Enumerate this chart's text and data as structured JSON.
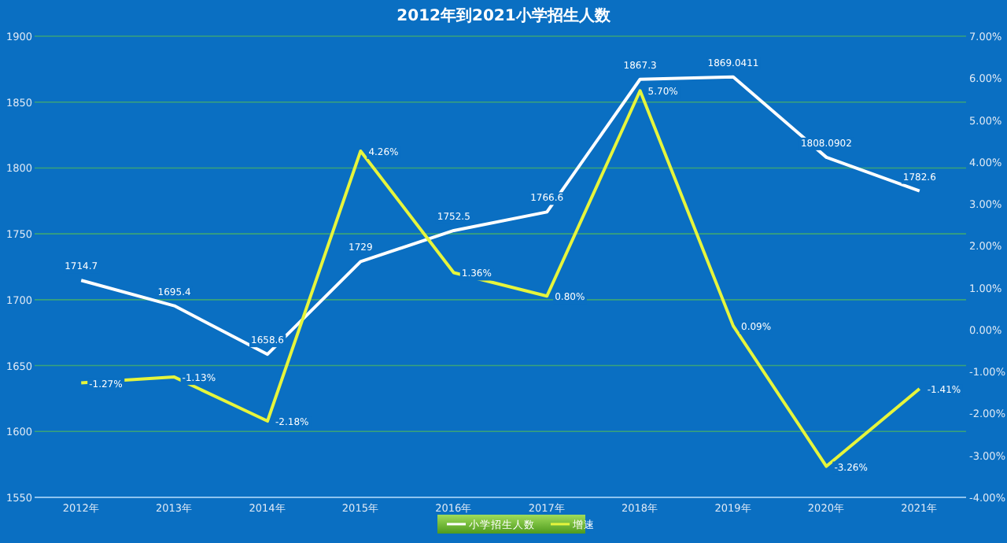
{
  "chart_data": {
    "type": "line",
    "title": "2012年到2021小学招生人数",
    "categories": [
      "2012年",
      "2013年",
      "2014年",
      "2015年",
      "2016年",
      "2017年",
      "2018年",
      "2019年",
      "2020年",
      "2021年"
    ],
    "series": [
      {
        "name": "小学招生人数",
        "color": "#ffffff",
        "values": [
          1714.7,
          1695.4,
          1658.6,
          1729,
          1752.5,
          1766.6,
          1867.3,
          1869.0411,
          1808.0902,
          1782.6
        ],
        "value_labels": [
          "1714.7",
          "1695.4",
          "1658.6",
          "1729",
          "1752.5",
          "1766.6",
          "1867.3",
          "1869.0411",
          "1808.0902",
          "1782.6"
        ]
      },
      {
        "name": "增速",
        "color": "#e6f53c",
        "axis": "y2",
        "values": [
          -1.27,
          -1.13,
          -2.18,
          4.26,
          1.36,
          0.8,
          5.7,
          0.09,
          -3.26,
          -1.41
        ],
        "value_labels": [
          "-1.27%",
          "-1.13%",
          "-2.18%",
          "4.26%",
          "1.36%",
          "0.80%",
          "5.70%",
          "0.09%",
          "-3.26%",
          "-1.41%"
        ]
      }
    ],
    "ylim": [
      1550,
      1900
    ],
    "yticks": [
      1550,
      1600,
      1650,
      1700,
      1750,
      1800,
      1850,
      1900
    ],
    "y2lim": [
      -4,
      7
    ],
    "y2ticks": [
      {
        "value": -4,
        "label": "-4.00%"
      },
      {
        "value": -3,
        "label": "-3.00%"
      },
      {
        "value": -2,
        "label": "-2.00%"
      },
      {
        "value": -1,
        "label": "-1.00%"
      },
      {
        "value": 0,
        "label": "0.00%"
      },
      {
        "value": 1,
        "label": "1.00%"
      },
      {
        "value": 2,
        "label": "2.00%"
      },
      {
        "value": 3,
        "label": "3.00%"
      },
      {
        "value": 4,
        "label": "4.00%"
      },
      {
        "value": 5,
        "label": "5.00%"
      },
      {
        "value": 6,
        "label": "6.00%"
      },
      {
        "value": 7,
        "label": "7.00%"
      }
    ],
    "grid": "y",
    "legend": "bottom",
    "marker": "none",
    "line_style": "solid"
  }
}
